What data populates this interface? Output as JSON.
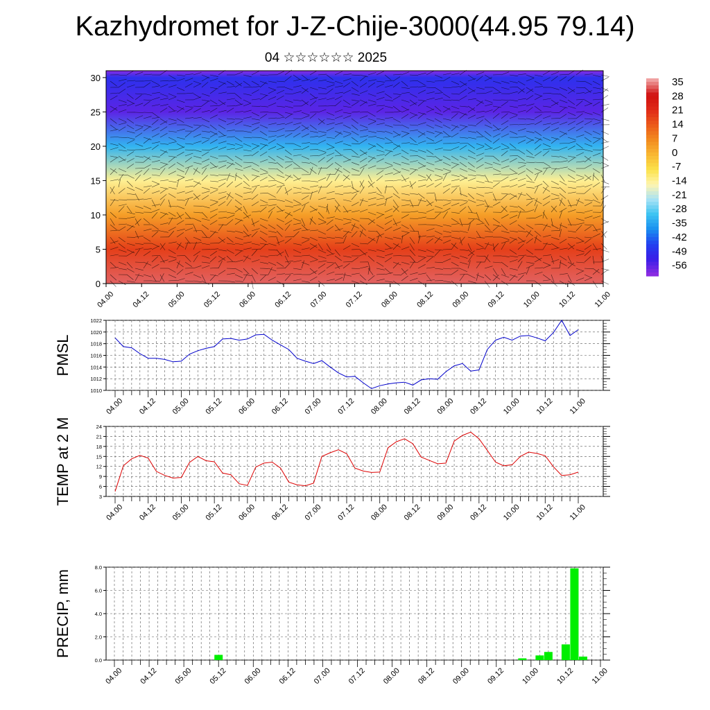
{
  "header": {
    "title": "Kazhydromet for J-Z-Chije-3000(44.95 79.14)",
    "subtitle": "04 ☆☆☆☆☆☆ 2025"
  },
  "time_ticks": [
    "04.00",
    "04.12",
    "05.00",
    "05.12",
    "06.00",
    "06.12",
    "07.00",
    "07.12",
    "08.00",
    "08.12",
    "09.00",
    "09.12",
    "10.00",
    "10.12",
    "11.00"
  ],
  "chart_data": [
    {
      "type": "heatmap",
      "name": "cross-section",
      "y_ticks": [
        0,
        5,
        10,
        15,
        20,
        25,
        30
      ],
      "ylim": [
        0,
        31
      ],
      "colorbar_labels": [
        "35",
        "28",
        "21",
        "14",
        "7",
        "0",
        "-7",
        "-14",
        "-21",
        "-28",
        "-35",
        "-42",
        "-49",
        "-56"
      ],
      "levels_km": [
        0,
        5,
        10,
        15,
        20,
        25,
        30
      ],
      "temperature_profile_c": [
        32,
        18,
        4,
        -12,
        -30,
        -52,
        -45
      ]
    },
    {
      "type": "line",
      "ylabel": "PMSL",
      "ylim": [
        1010,
        1022
      ],
      "y_ticks": [
        1010,
        1012,
        1014,
        1016,
        1018,
        1020,
        1022
      ],
      "color": "#0000cc",
      "values": [
        1019.0,
        1017.5,
        1017.3,
        1016.3,
        1015.5,
        1015.5,
        1015.3,
        1014.9,
        1015.0,
        1016.2,
        1016.8,
        1017.2,
        1017.5,
        1018.8,
        1018.9,
        1018.6,
        1018.8,
        1019.5,
        1019.6,
        1018.6,
        1017.8,
        1017.0,
        1015.5,
        1015.0,
        1014.6,
        1015.1,
        1014.0,
        1013.0,
        1012.3,
        1012.4,
        1011.3,
        1010.3,
        1010.8,
        1011.1,
        1011.3,
        1011.4,
        1010.9,
        1011.8,
        1012.0,
        1011.9,
        1013.2,
        1014.2,
        1014.6,
        1013.3,
        1013.5,
        1017.0,
        1018.6,
        1019.1,
        1018.6,
        1019.3,
        1019.4,
        1019.0,
        1018.5,
        1019.9,
        1022.0,
        1019.4,
        1020.4
      ]
    },
    {
      "type": "line",
      "ylabel": "TEMP at 2 M",
      "ylim": [
        3,
        24
      ],
      "y_ticks": [
        3,
        6,
        9,
        12,
        15,
        18,
        21,
        24
      ],
      "color": "#dd0000",
      "values": [
        4.5,
        12.2,
        14.3,
        15.3,
        14.5,
        10.5,
        9.3,
        8.5,
        8.7,
        13.2,
        15.0,
        13.7,
        13.4,
        10.0,
        9.5,
        6.8,
        6.3,
        11.8,
        13.0,
        13.3,
        11.5,
        7.3,
        6.5,
        6.2,
        7.0,
        15.0,
        16.1,
        17.0,
        15.8,
        11.5,
        10.6,
        10.2,
        10.3,
        17.6,
        19.4,
        20.3,
        18.8,
        14.8,
        13.8,
        12.8,
        13.0,
        19.6,
        21.3,
        22.3,
        20.3,
        16.8,
        13.3,
        12.2,
        12.5,
        15.0,
        16.3,
        15.9,
        15.2,
        11.9,
        9.3,
        9.5,
        10.3
      ]
    },
    {
      "type": "bar",
      "ylabel": "PRECIP, mm",
      "ylim": [
        0,
        8
      ],
      "y_ticks": [
        "0.0",
        "2.0",
        "4.0",
        "6.0",
        "8.0"
      ],
      "color": "#00ee00",
      "values": [
        0,
        0,
        0,
        0,
        0,
        0,
        0,
        0,
        0,
        0,
        0,
        0,
        0.45,
        0,
        0,
        0,
        0,
        0,
        0,
        0,
        0,
        0,
        0,
        0,
        0,
        0,
        0,
        0,
        0,
        0,
        0,
        0,
        0,
        0,
        0,
        0,
        0,
        0,
        0,
        0,
        0,
        0,
        0,
        0,
        0,
        0,
        0,
        0.15,
        0,
        0.4,
        0.7,
        0,
        1.35,
        7.9,
        0.3,
        0,
        0
      ]
    }
  ]
}
